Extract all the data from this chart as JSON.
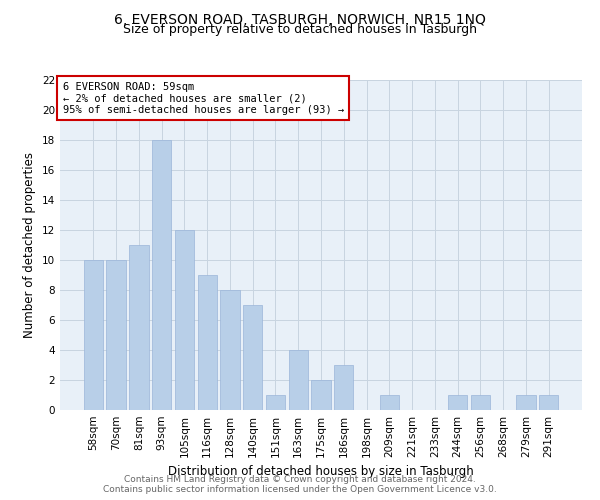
{
  "title": "6, EVERSON ROAD, TASBURGH, NORWICH, NR15 1NQ",
  "subtitle": "Size of property relative to detached houses in Tasburgh",
  "xlabel": "Distribution of detached houses by size in Tasburgh",
  "ylabel": "Number of detached properties",
  "bar_labels": [
    "58sqm",
    "70sqm",
    "81sqm",
    "93sqm",
    "105sqm",
    "116sqm",
    "128sqm",
    "140sqm",
    "151sqm",
    "163sqm",
    "175sqm",
    "186sqm",
    "198sqm",
    "209sqm",
    "221sqm",
    "233sqm",
    "244sqm",
    "256sqm",
    "268sqm",
    "279sqm",
    "291sqm"
  ],
  "bar_values": [
    10,
    10,
    11,
    18,
    12,
    9,
    8,
    7,
    1,
    4,
    2,
    3,
    0,
    1,
    0,
    0,
    1,
    1,
    0,
    1,
    1
  ],
  "bar_color": "#b8cfe8",
  "bar_edge_color": "#9ab5d9",
  "annotation_text": "6 EVERSON ROAD: 59sqm\n← 2% of detached houses are smaller (2)\n95% of semi-detached houses are larger (93) →",
  "annotation_box_color": "#ffffff",
  "annotation_box_edge_color": "#cc0000",
  "ylim": [
    0,
    22
  ],
  "yticks": [
    0,
    2,
    4,
    6,
    8,
    10,
    12,
    14,
    16,
    18,
    20,
    22
  ],
  "grid_color": "#c8d4e0",
  "background_color": "#e8f0f8",
  "footer_text": "Contains HM Land Registry data © Crown copyright and database right 2024.\nContains public sector information licensed under the Open Government Licence v3.0.",
  "title_fontsize": 10,
  "subtitle_fontsize": 9,
  "xlabel_fontsize": 8.5,
  "ylabel_fontsize": 8.5,
  "annotation_fontsize": 7.5,
  "footer_fontsize": 6.5,
  "tick_fontsize": 7.5
}
